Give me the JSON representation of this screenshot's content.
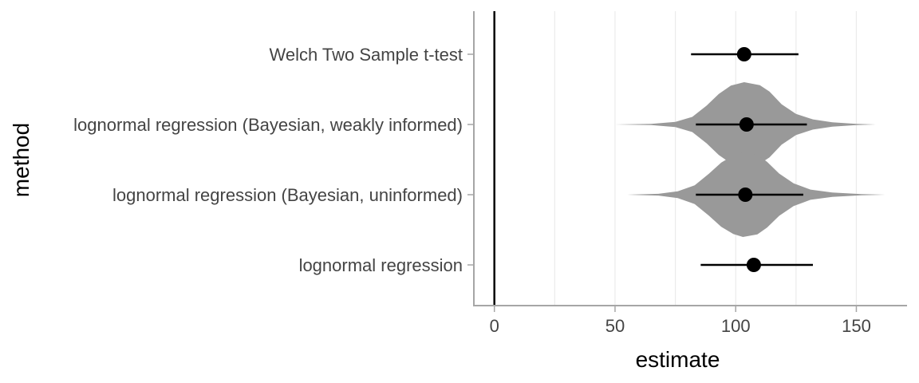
{
  "chart_data": {
    "type": "pointrange",
    "xlabel": "estimate",
    "ylabel": "method",
    "xlim": [
      -8.5,
      171
    ],
    "xticks": [
      0,
      50,
      100,
      150
    ],
    "minor_gridlines": [
      25,
      75,
      125
    ],
    "reference_line_x": 0,
    "categories": [
      "Welch Two Sample t-test",
      "lognormal regression (Bayesian, weakly informed)",
      "lognormal regression (Bayesian, uninformed)",
      "lognormal regression"
    ],
    "series": [
      {
        "values": [
          {
            "method": "Welch Two Sample t-test",
            "estimate": 103.5,
            "lower": 81.5,
            "upper": 126
          },
          {
            "method": "lognormal regression (Bayesian, weakly informed)",
            "estimate": 104.5,
            "lower": 83.5,
            "upper": 129.5
          },
          {
            "method": "lognormal regression (Bayesian, uninformed)",
            "estimate": 104,
            "lower": 83.5,
            "upper": 128
          },
          {
            "method": "lognormal regression",
            "estimate": 107.5,
            "lower": 85.5,
            "upper": 132
          }
        ]
      }
    ],
    "posterior_densities": [
      {
        "method": "lognormal regression (Bayesian, weakly informed)",
        "mode": 103.5,
        "profile": [
          [
            50,
            0.0
          ],
          [
            65,
            0.015
          ],
          [
            75,
            0.06
          ],
          [
            82,
            0.18
          ],
          [
            88,
            0.45
          ],
          [
            93,
            0.72
          ],
          [
            98,
            0.92
          ],
          [
            103.5,
            1.0
          ],
          [
            110,
            0.93
          ],
          [
            114,
            0.78
          ],
          [
            119,
            0.48
          ],
          [
            125,
            0.25
          ],
          [
            132,
            0.12
          ],
          [
            140,
            0.05
          ],
          [
            150,
            0.015
          ],
          [
            158,
            0.0
          ]
        ]
      },
      {
        "method": "lognormal regression (Bayesian, uninformed)",
        "mode": 103,
        "profile": [
          [
            55,
            0.0
          ],
          [
            68,
            0.02
          ],
          [
            76,
            0.08
          ],
          [
            83,
            0.22
          ],
          [
            89,
            0.5
          ],
          [
            94,
            0.76
          ],
          [
            99,
            0.93
          ],
          [
            103,
            1.0
          ],
          [
            109,
            0.94
          ],
          [
            113,
            0.78
          ],
          [
            118,
            0.5
          ],
          [
            124,
            0.27
          ],
          [
            131,
            0.12
          ],
          [
            140,
            0.05
          ],
          [
            152,
            0.015
          ],
          [
            162,
            0.0
          ]
        ]
      }
    ],
    "colors": {
      "point": "#000000",
      "interval": "#000000",
      "density": "#999999",
      "gridline": "#ebebeb",
      "axis": "#a6a6a6",
      "reference_line": "#000000"
    }
  }
}
